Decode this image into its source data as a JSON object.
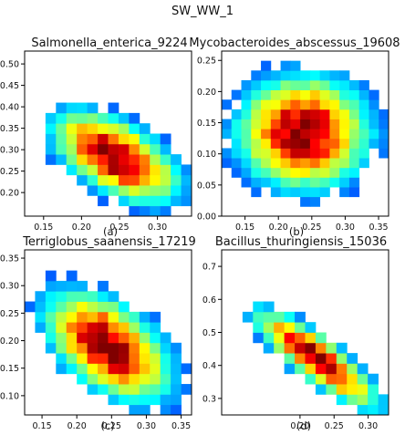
{
  "figure_title": "SW_WW_1",
  "chart_data": [
    {
      "type": "heatmap",
      "title": "Salmonella_enterica_9224",
      "sublabel": "(a)",
      "xlim": [
        0.125,
        0.345
      ],
      "ylim": [
        0.145,
        0.53
      ],
      "xticks": [
        0.15,
        0.2,
        0.25,
        0.3
      ],
      "yticks": [
        0.2,
        0.25,
        0.3,
        0.35,
        0.4,
        0.45,
        0.5
      ],
      "nx": 16,
      "ny": 16,
      "center": [
        0.245,
        0.283
      ],
      "spread": [
        0.05,
        0.065
      ],
      "rho": -0.55,
      "grid": false,
      "colormap": "jet"
    },
    {
      "type": "heatmap",
      "title": "Mycobacteroides_abscessus_19608",
      "sublabel": "(b)",
      "xlim": [
        0.115,
        0.365
      ],
      "ylim": [
        0.0,
        0.265
      ],
      "xticks": [
        0.15,
        0.2,
        0.25,
        0.3,
        0.35
      ],
      "yticks": [
        0.0,
        0.05,
        0.1,
        0.15,
        0.2,
        0.25
      ],
      "nx": 17,
      "ny": 17,
      "center": [
        0.237,
        0.135
      ],
      "spread": [
        0.06,
        0.055
      ],
      "rho": 0.0,
      "grid": false,
      "colormap": "jet"
    },
    {
      "type": "heatmap",
      "title": "Terriglobus_saanensis_17219",
      "sublabel": "(c)",
      "xlim": [
        0.125,
        0.365
      ],
      "ylim": [
        0.065,
        0.365
      ],
      "xticks": [
        0.15,
        0.2,
        0.25,
        0.3,
        0.35
      ],
      "yticks": [
        0.1,
        0.15,
        0.2,
        0.25,
        0.3,
        0.35
      ],
      "nx": 16,
      "ny": 16,
      "center": [
        0.245,
        0.19
      ],
      "spread": [
        0.055,
        0.06
      ],
      "rho": -0.5,
      "grid": false,
      "colormap": "jet"
    },
    {
      "type": "heatmap",
      "title": "Bacillus_thuringiensis_15036",
      "sublabel": "(d)",
      "xlim": [
        0.085,
        0.33
      ],
      "ylim": [
        0.25,
        0.75
      ],
      "xticks": [
        0.2,
        0.25,
        0.3
      ],
      "yticks": [
        0.3,
        0.4,
        0.5,
        0.6,
        0.7
      ],
      "nx": 16,
      "ny": 16,
      "center": [
        0.225,
        0.42
      ],
      "spread": [
        0.055,
        0.09
      ],
      "rho": -0.85,
      "grid": false,
      "colormap": "jet"
    }
  ]
}
